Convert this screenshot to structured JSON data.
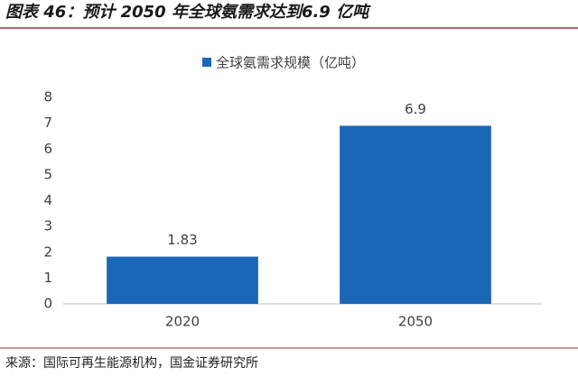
{
  "title": "图表 46：预计 2050 年全球氨需求达到6.9 亿吨",
  "source": "来源：国际可再生能源机构，国金证券研究所",
  "chart_data": {
    "type": "bar",
    "categories": [
      "2020",
      "2050"
    ],
    "series": [
      {
        "name": "全球氨需求规模（亿吨）",
        "color": "#1a67b8",
        "values": [
          1.83,
          6.9
        ]
      }
    ],
    "ylim": [
      0,
      8
    ],
    "yticks": [
      0,
      1,
      2,
      3,
      4,
      5,
      6,
      7,
      8
    ],
    "grid": false
  }
}
